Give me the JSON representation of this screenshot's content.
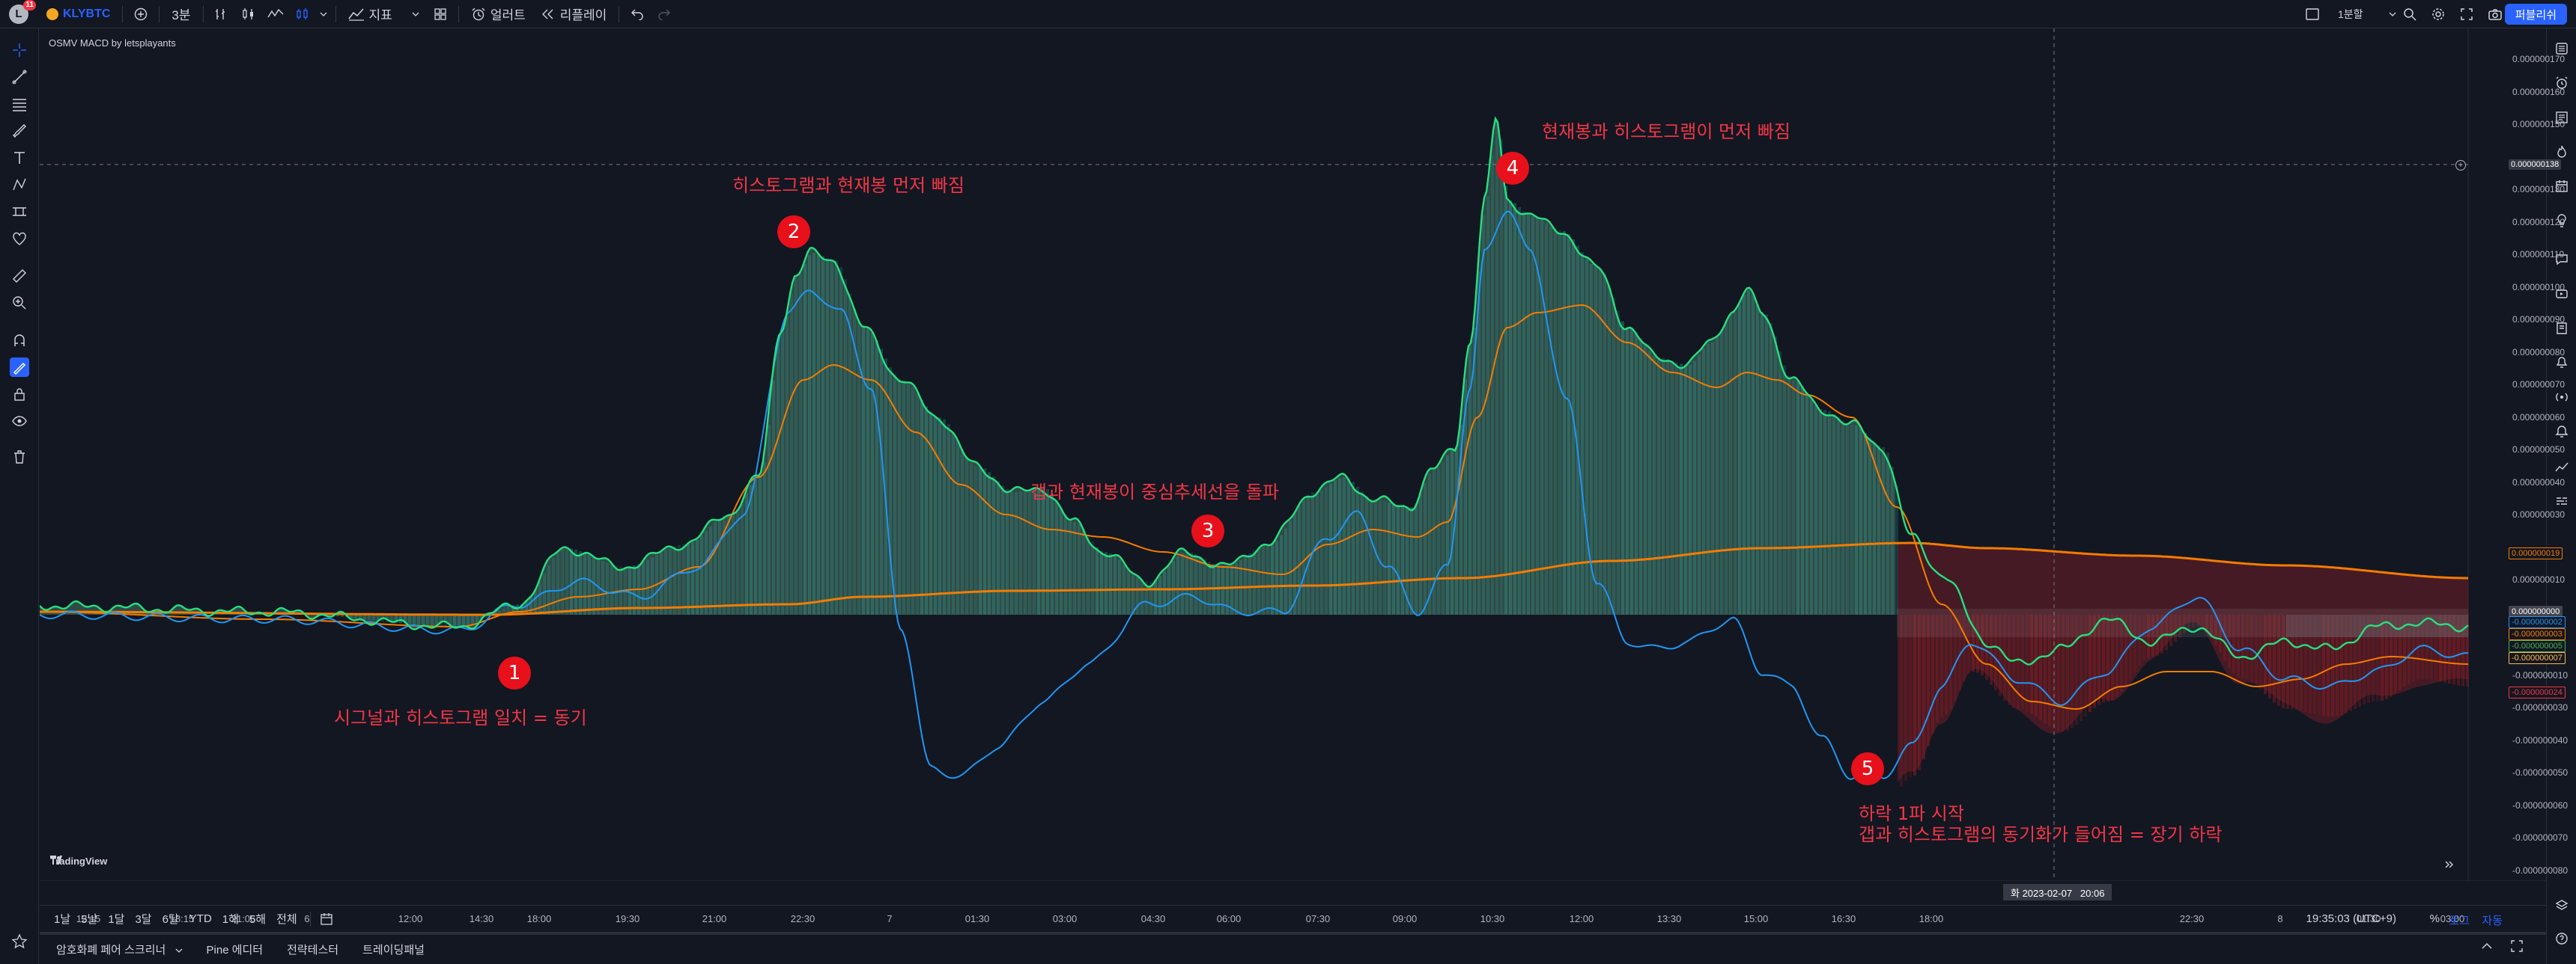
{
  "toolbar": {
    "avatar_letter": "L",
    "avatar_badge": "11",
    "symbol": "KLYBTC",
    "interval": "3분",
    "indicators_label": "지표",
    "alert_label": "얼러트",
    "replay_label": "리플레이",
    "layout_label": "1분할",
    "publish_label": "퍼블리쉬"
  },
  "chart": {
    "indicator_title": "OSMV MACD by letsplayants",
    "watermark": "TradingView",
    "crosshair_price": "0.000000138",
    "crosshair_time": "화 2023-02-07   20:06",
    "price_axis": [
      "0.000000170",
      "0.000000160",
      "0.000000150",
      "0.000000130",
      "0.000000120",
      "0.000000110",
      "0.000000100",
      "0.000000090",
      "0.000000080",
      "0.000000070",
      "0.000000060",
      "0.000000050",
      "0.000000040",
      "0.000000030",
      "0.000000010",
      "-0.000000010",
      "-0.000000030",
      "-0.000000040",
      "-0.000000050",
      "-0.000000060",
      "-0.000000070",
      "-0.000000080"
    ],
    "price_tags": [
      {
        "text": "0.000000019",
        "color": "#f57c00",
        "bg": "#131722",
        "border": "#f57c00"
      },
      {
        "text": "0.000000000",
        "color": "#ffffff",
        "bg": "#434651",
        "border": "#434651"
      },
      {
        "text": "-0.000000002",
        "color": "#2196f3",
        "bg": "#131722",
        "border": "#2196f3"
      },
      {
        "text": "-0.000000003",
        "color": "#f57c00",
        "bg": "#131722",
        "border": "#f57c00"
      },
      {
        "text": "-0.000000005",
        "color": "#4caf50",
        "bg": "#131722",
        "border": "#4caf50"
      },
      {
        "text": "-0.000000007",
        "color": "#ffb74d",
        "bg": "#131722",
        "border": "#ffb74d"
      },
      {
        "text": "-0.000000024",
        "color": "#f23645",
        "bg": "#131722",
        "border": "#f23645"
      }
    ],
    "time_axis": [
      "12:15",
      "18:15",
      "21:06",
      "6",
      "12:00",
      "14:30",
      "18:00",
      "19:30",
      "21:00",
      "22:30",
      "7",
      "01:30",
      "03:00",
      "04:30",
      "06:00",
      "07:30",
      "09:00",
      "10:30",
      "12:00",
      "13:30",
      "15:00",
      "16:30",
      "18:00",
      "",
      "22:30",
      "8",
      "01:30",
      "03:00"
    ],
    "annotations": [
      {
        "id": "1",
        "text": "시그널과 히스토그램 일치 = 동기"
      },
      {
        "id": "2",
        "text": "히스토그램과 현재봉 먼저 빠짐"
      },
      {
        "id": "3",
        "text": "갭과 현재봉이 중심추세선을 돌파"
      },
      {
        "id": "4",
        "text": "현재봉과 히스토그램이 먼저 빠짐"
      },
      {
        "id": "5",
        "line1": "하락 1파 시작",
        "line2": "갭과 히스토그램의 동기화가 들어짐 = 장기 하락"
      }
    ]
  },
  "range_bar": {
    "ranges": [
      "1날",
      "5날",
      "1달",
      "3달",
      "6달",
      "YTD",
      "1해",
      "5해",
      "전체"
    ],
    "clock": "19:35:03 (UTC+9)",
    "percent": "%",
    "log": "로그",
    "auto": "자동"
  },
  "bottom_tabs": [
    "암호화폐 페어 스크리너",
    "Pine 에디터",
    "전략테스터",
    "트레이딩패널"
  ],
  "colors": {
    "background": "#131722",
    "macd_line": "#2196f3",
    "signal_line": "#f57c00",
    "green_line": "#26e07f",
    "histogram_positive": "#26a69a",
    "histogram_negative": "#b71c1c",
    "annotation": "#f23645"
  },
  "icons": {
    "left": [
      "crosshair-icon",
      "trendline-icon",
      "fib-icon",
      "brush-icon",
      "text-icon",
      "pattern-icon",
      "measure-icon",
      "heart-icon",
      "ruler-icon",
      "zoom-icon",
      "magnet-icon",
      "drawing-mode-icon",
      "lock-icon",
      "eye-icon",
      "trash-icon"
    ],
    "right": [
      "watchlist-icon",
      "alarm-icon",
      "news-icon",
      "hotlist-icon",
      "calendar-icon",
      "ideas-icon",
      "chat-icon",
      "streams-icon",
      "notes-icon",
      "pulse-icon",
      "broadcast-icon",
      "notifications-icon",
      "chart-icon",
      "dom-icon"
    ]
  }
}
